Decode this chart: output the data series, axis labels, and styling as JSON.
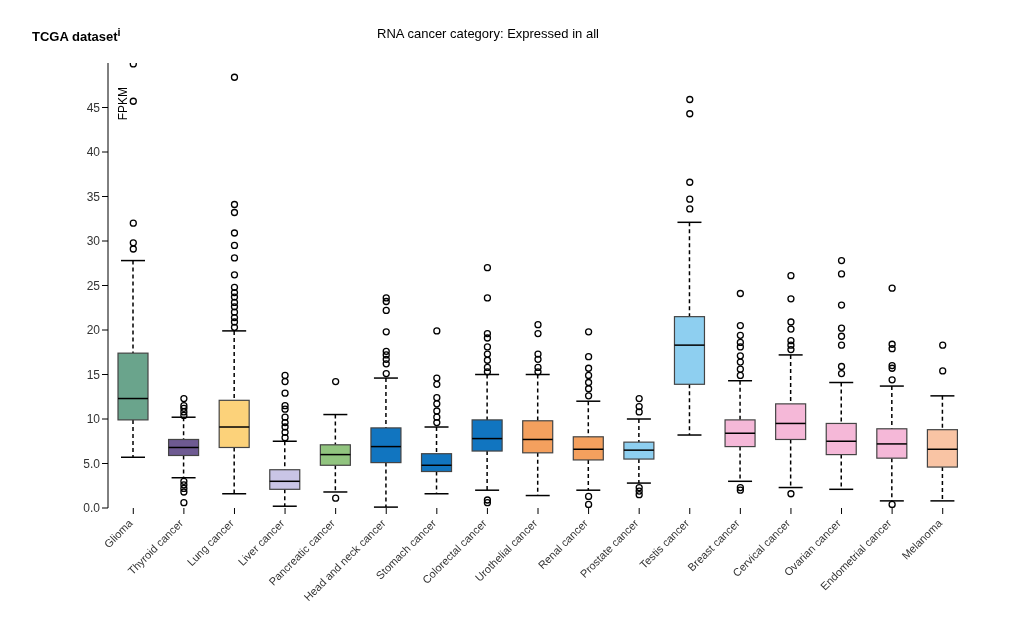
{
  "chart_data": {
    "type": "box",
    "title": "TCGA dataset$^{i}$",
    "subtitle": "RNA cancer category: Expressed in all",
    "ylabel": "FPKM",
    "categories": [
      "Glioma",
      "Thyroid cancer",
      "Lung cancer",
      "Liver cancer",
      "Pancreatic cancer",
      "Head and neck cancer",
      "Stomach cancer",
      "Colorectal cancer",
      "Urothelial cancer",
      "Renal cancer",
      "Prostate cancer",
      "Testis cancer",
      "Breast cancer",
      "Cervical cancer",
      "Ovarian cancer",
      "Endometrial cancer",
      "Melanoma"
    ],
    "colors": [
      "#6aa48c",
      "#6e5a92",
      "#fcd27a",
      "#c9c5e6",
      "#91c47f",
      "#1175c0",
      "#1175c0",
      "#1175c0",
      "#f4a05e",
      "#f4a05e",
      "#8ecff0",
      "#8ecff0",
      "#f5b8d8",
      "#f5b8d8",
      "#f5b8d8",
      "#f5b8d8",
      "#f9c4a4"
    ],
    "boxes": [
      {
        "low": 5.7,
        "q1": 9.9,
        "median": 12.3,
        "q3": 17.4,
        "high": 27.8,
        "outliers": [
          49.9,
          45.7,
          32.0,
          29.8,
          29.1
        ]
      },
      {
        "low": 3.4,
        "q1": 5.9,
        "median": 6.8,
        "q3": 7.7,
        "high": 10.2,
        "outliers": [
          10.4,
          10.8,
          11.2,
          11.5,
          12.3,
          3.0,
          2.6,
          2.2,
          1.8,
          0.6
        ]
      },
      {
        "low": 1.6,
        "q1": 6.8,
        "median": 9.1,
        "q3": 12.1,
        "high": 19.9,
        "outliers": [
          48.4,
          34.1,
          33.2,
          30.9,
          29.5,
          28.1,
          26.2,
          24.8,
          24.2,
          23.7,
          23.1,
          22.6,
          22.0,
          21.4,
          20.9,
          20.3
        ]
      },
      {
        "low": 0.2,
        "q1": 2.1,
        "median": 3.0,
        "q3": 4.3,
        "high": 7.5,
        "outliers": [
          14.9,
          14.2,
          12.9,
          11.5,
          11.1,
          10.2,
          9.6,
          9.1,
          8.5,
          7.9
        ]
      },
      {
        "low": 1.8,
        "q1": 4.8,
        "median": 6.0,
        "q3": 7.1,
        "high": 10.5,
        "outliers": [
          14.2,
          1.1
        ]
      },
      {
        "low": 0.1,
        "q1": 5.1,
        "median": 6.9,
        "q3": 9.0,
        "high": 14.6,
        "outliers": [
          23.6,
          23.2,
          22.2,
          19.8,
          17.6,
          17.2,
          16.7,
          16.2,
          15.1
        ]
      },
      {
        "low": 1.6,
        "q1": 4.1,
        "median": 4.8,
        "q3": 6.1,
        "high": 9.1,
        "outliers": [
          19.9,
          14.6,
          13.9,
          12.4,
          11.7,
          10.9,
          10.2,
          9.6
        ]
      },
      {
        "low": 2.0,
        "q1": 6.4,
        "median": 7.8,
        "q3": 9.9,
        "high": 15.0,
        "outliers": [
          27.0,
          23.6,
          19.6,
          19.1,
          18.1,
          17.3,
          16.6,
          15.8,
          15.3,
          0.9,
          0.6
        ]
      },
      {
        "low": 1.4,
        "q1": 6.2,
        "median": 7.7,
        "q3": 9.8,
        "high": 15.0,
        "outliers": [
          20.6,
          19.6,
          17.3,
          16.7,
          15.8,
          15.3
        ]
      },
      {
        "low": 2.0,
        "q1": 5.4,
        "median": 6.6,
        "q3": 8.0,
        "high": 12.0,
        "outliers": [
          19.8,
          17.0,
          15.7,
          14.9,
          14.1,
          13.4,
          12.6,
          1.3,
          0.4
        ]
      },
      {
        "low": 2.8,
        "q1": 5.5,
        "median": 6.5,
        "q3": 7.4,
        "high": 10.0,
        "outliers": [
          12.3,
          11.4,
          10.8,
          2.3,
          1.9,
          1.5
        ]
      },
      {
        "low": 8.2,
        "q1": 13.9,
        "median": 18.3,
        "q3": 21.5,
        "high": 32.1,
        "outliers": [
          45.9,
          44.3,
          36.6,
          34.7,
          33.6
        ]
      },
      {
        "low": 3.0,
        "q1": 6.9,
        "median": 8.4,
        "q3": 9.9,
        "high": 14.3,
        "outliers": [
          24.1,
          20.5,
          19.4,
          18.6,
          18.1,
          17.1,
          16.4,
          15.6,
          14.9,
          2.3,
          2.0
        ]
      },
      {
        "low": 2.3,
        "q1": 7.7,
        "median": 9.5,
        "q3": 11.7,
        "high": 17.2,
        "outliers": [
          26.1,
          23.5,
          20.9,
          20.1,
          18.8,
          18.3,
          17.8,
          1.6
        ]
      },
      {
        "low": 2.1,
        "q1": 6.0,
        "median": 7.5,
        "q3": 9.5,
        "high": 14.1,
        "outliers": [
          27.8,
          26.3,
          22.8,
          20.2,
          19.3,
          18.3,
          15.9,
          15.1
        ]
      },
      {
        "low": 0.8,
        "q1": 5.6,
        "median": 7.2,
        "q3": 8.9,
        "high": 13.7,
        "outliers": [
          24.7,
          18.4,
          17.9,
          16.0,
          15.7,
          14.4,
          0.4
        ]
      },
      {
        "low": 0.8,
        "q1": 4.6,
        "median": 6.6,
        "q3": 8.8,
        "high": 12.6,
        "outliers": [
          18.3,
          15.4
        ]
      }
    ],
    "ylim": [
      0,
      50
    ],
    "yticks": [
      {
        "value": 0,
        "label": "0.0"
      },
      {
        "value": 5,
        "label": "5.0"
      },
      10,
      15,
      20,
      25,
      30,
      35,
      40,
      45
    ]
  }
}
